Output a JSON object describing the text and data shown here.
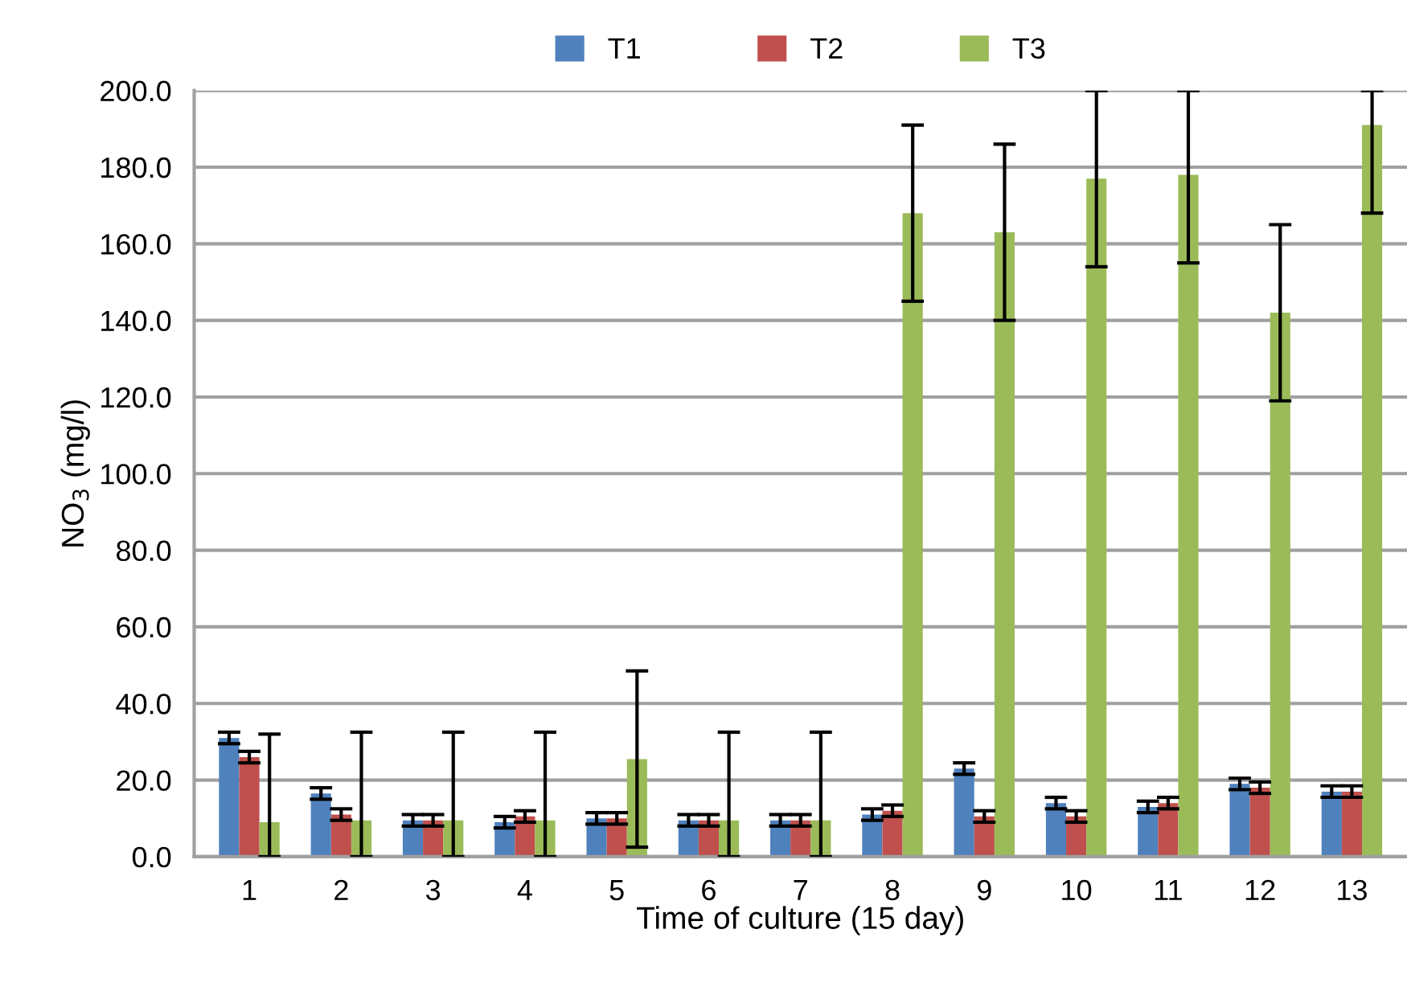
{
  "chart_data": {
    "type": "bar",
    "xlabel": "Time of culture (15 day)",
    "ylabel": "NO$_{3}$ (mg/l)",
    "categories": [
      "1",
      "2",
      "3",
      "4",
      "5",
      "6",
      "7",
      "8",
      "9",
      "10",
      "11",
      "12",
      "13"
    ],
    "series": [
      {
        "name": "T1",
        "color": "#4f81bd",
        "values": [
          31,
          16.5,
          9.5,
          9,
          10,
          9.5,
          9.5,
          11,
          23,
          14,
          13,
          19,
          17
        ],
        "errors": [
          1.5,
          1.5,
          1.5,
          1.5,
          1.5,
          1.5,
          1.5,
          1.5,
          1.5,
          1.5,
          1.5,
          1.5,
          1.5
        ]
      },
      {
        "name": "T2",
        "color": "#c0504d",
        "values": [
          26,
          11,
          9.5,
          10.5,
          10,
          9.5,
          9.5,
          12,
          10.5,
          10.5,
          14,
          18,
          17
        ],
        "errors": [
          1.5,
          1.5,
          1.5,
          1.5,
          1.5,
          1.5,
          1.5,
          1.5,
          1.5,
          1.5,
          1.5,
          1.5,
          1.5
        ]
      },
      {
        "name": "T3",
        "color": "#9bbb59",
        "values": [
          9,
          9.5,
          9.5,
          9.5,
          25.5,
          9.5,
          9.5,
          168,
          163,
          177,
          178,
          142,
          191
        ],
        "errors": [
          [
            0,
            32
          ],
          [
            0,
            32.5
          ],
          [
            0,
            32.5
          ],
          [
            0,
            32.5
          ],
          23,
          [
            0,
            32.5
          ],
          [
            0,
            32.5
          ],
          23,
          23,
          23,
          [
            155,
            200
          ],
          23,
          [
            168,
            200
          ]
        ]
      }
    ],
    "ylim": [
      0,
      200
    ],
    "yticks": [
      {
        "value": 0,
        "label": "0.0"
      },
      {
        "value": 20,
        "label": "20.0"
      },
      {
        "value": 40,
        "label": "40.0"
      },
      {
        "value": 60,
        "label": "60.0"
      },
      {
        "value": 80,
        "label": "80.0"
      },
      {
        "value": 100,
        "label": "100.0"
      },
      {
        "value": 120,
        "label": "120.0"
      },
      {
        "value": 140,
        "label": "140.0"
      },
      {
        "value": 160,
        "label": "160.0"
      },
      {
        "value": 180,
        "label": "180.0"
      },
      {
        "value": 200,
        "label": "200.0"
      }
    ],
    "grid": "y",
    "legend": "top"
  }
}
